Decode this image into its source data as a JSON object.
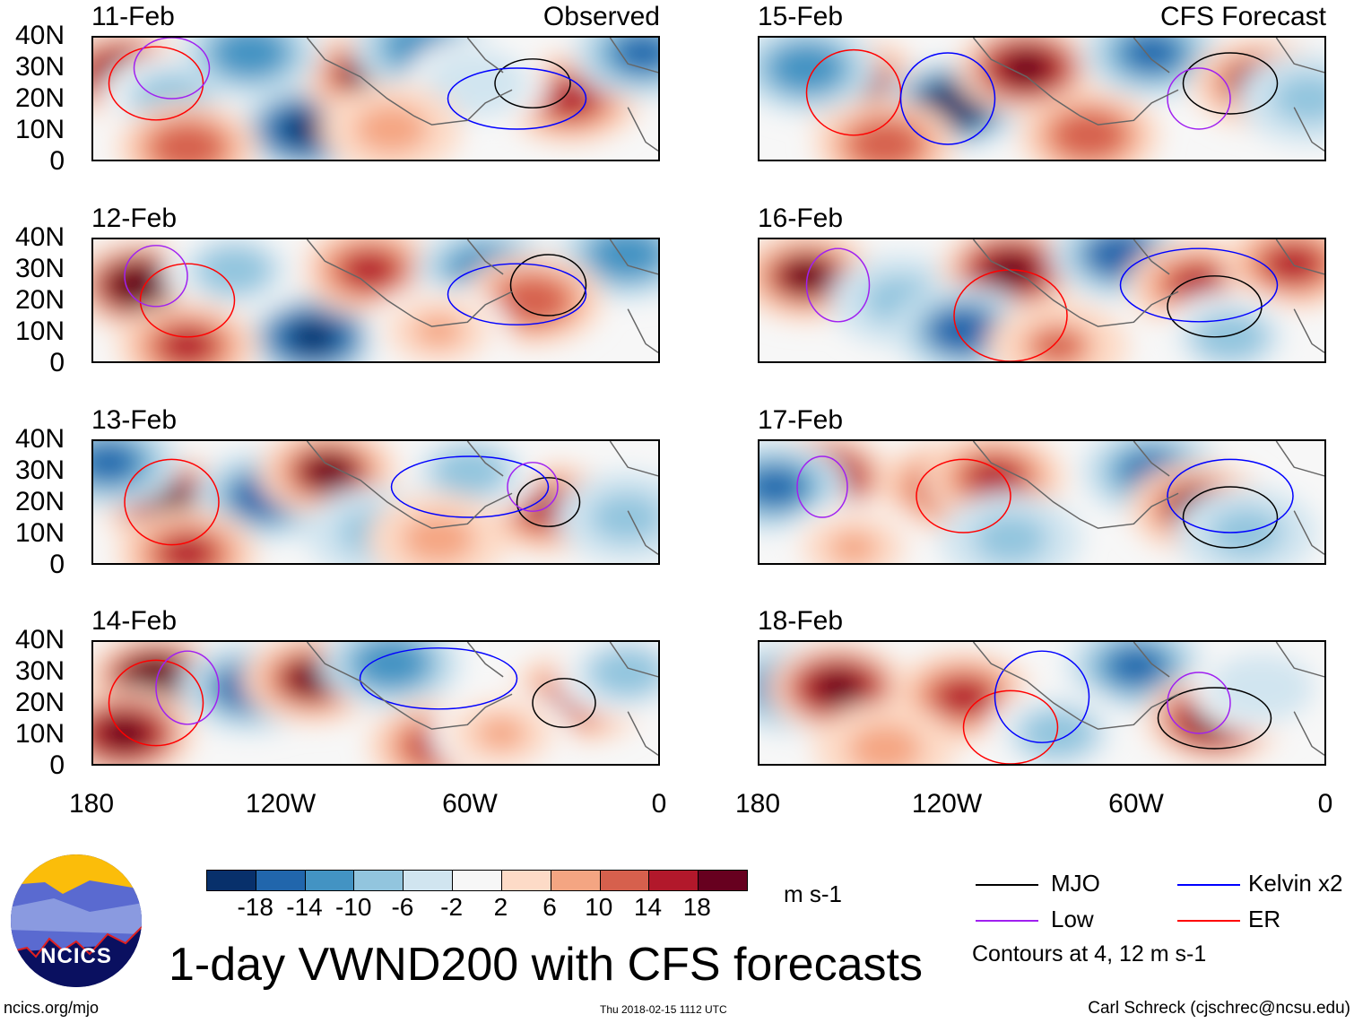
{
  "chart_data": {
    "type": "heatmap",
    "title": "1-day VWND200 with CFS forecasts",
    "units": "m s-1",
    "xlim": [
      -180,
      0
    ],
    "ylim": [
      0,
      40
    ],
    "x_ticks": [
      "180",
      "120W",
      "60W",
      "0"
    ],
    "y_ticks": [
      "40N",
      "30N",
      "20N",
      "10N",
      "0"
    ],
    "left_column_label": "Observed",
    "right_column_label": "CFS Forecast",
    "colorbar": {
      "levels": [
        "-18",
        "-14",
        "-10",
        "-6",
        "-2",
        "2",
        "6",
        "10",
        "14",
        "18"
      ],
      "colors": [
        "#08306b",
        "#2166ac",
        "#4393c3",
        "#92c5de",
        "#d1e5f0",
        "#f7f7f7",
        "#fddbc7",
        "#f4a582",
        "#d6604d",
        "#b2182b",
        "#67001f"
      ]
    },
    "legend": [
      {
        "label": "MJO",
        "color": "#000000"
      },
      {
        "label": "Kelvin x2",
        "color": "#0000ff"
      },
      {
        "label": "Low",
        "color": "#a020f0"
      },
      {
        "label": "ER",
        "color": "#ff0000"
      }
    ],
    "contour_note": "Contours at 4, 12 m s-1",
    "panels": [
      {
        "date": "11-Feb",
        "blobs": [
          [
            -170,
            28,
            20
          ],
          [
            -112,
            10,
            -20
          ],
          [
            -92,
            28,
            18
          ],
          [
            -75,
            37,
            -14
          ],
          [
            -28,
            20,
            16
          ],
          [
            -5,
            35,
            -15
          ],
          [
            -155,
            20,
            -8
          ],
          [
            -58,
            25,
            -6
          ],
          [
            -130,
            35,
            -12
          ],
          [
            -150,
            4,
            12
          ],
          [
            -85,
            10,
            8
          ]
        ],
        "contours": [
          [
            -40,
            25,
            12,
            8,
            "MJO"
          ],
          [
            -160,
            25,
            15,
            12,
            "ER"
          ],
          [
            -45,
            20,
            22,
            10,
            "Kelvin"
          ],
          [
            -155,
            30,
            12,
            10,
            "Low"
          ]
        ]
      },
      {
        "date": "12-Feb",
        "blobs": [
          [
            -165,
            25,
            22
          ],
          [
            -110,
            8,
            -20
          ],
          [
            -92,
            30,
            16
          ],
          [
            -55,
            30,
            -14
          ],
          [
            -10,
            35,
            -12
          ],
          [
            -40,
            20,
            12
          ],
          [
            -135,
            30,
            -8
          ],
          [
            -150,
            5,
            14
          ],
          [
            -70,
            10,
            6
          ]
        ],
        "contours": [
          [
            -35,
            25,
            12,
            10,
            "MJO"
          ],
          [
            -150,
            20,
            15,
            12,
            "ER"
          ],
          [
            -45,
            22,
            22,
            10,
            "Kelvin"
          ],
          [
            -160,
            28,
            10,
            10,
            "Low"
          ]
        ]
      },
      {
        "date": "13-Feb",
        "blobs": [
          [
            -155,
            20,
            20
          ],
          [
            -175,
            33,
            -16
          ],
          [
            -125,
            22,
            -18
          ],
          [
            -105,
            30,
            18
          ],
          [
            -35,
            18,
            16
          ],
          [
            -60,
            30,
            -8
          ],
          [
            -10,
            15,
            -10
          ],
          [
            -90,
            10,
            -10
          ],
          [
            -150,
            3,
            16
          ],
          [
            -70,
            8,
            8
          ]
        ],
        "contours": [
          [
            -35,
            20,
            10,
            8,
            "MJO"
          ],
          [
            -155,
            20,
            15,
            14,
            "ER"
          ],
          [
            -60,
            25,
            25,
            10,
            "Kelvin"
          ],
          [
            -40,
            25,
            8,
            8,
            "Low"
          ]
        ]
      },
      {
        "date": "14-Feb",
        "blobs": [
          [
            -160,
            28,
            22
          ],
          [
            -170,
            10,
            20
          ],
          [
            -130,
            25,
            -18
          ],
          [
            -110,
            28,
            18
          ],
          [
            -85,
            33,
            -12
          ],
          [
            -25,
            22,
            16
          ],
          [
            -70,
            6,
            14
          ],
          [
            -50,
            10,
            6
          ],
          [
            -10,
            30,
            -8
          ]
        ],
        "contours": [
          [
            -30,
            20,
            10,
            8,
            "MJO"
          ],
          [
            -160,
            20,
            15,
            14,
            "ER"
          ],
          [
            -70,
            28,
            25,
            10,
            "Kelvin"
          ],
          [
            -150,
            25,
            10,
            12,
            "Low"
          ]
        ]
      },
      {
        "date": "15-Feb",
        "blobs": [
          [
            -150,
            25,
            18
          ],
          [
            -165,
            30,
            -12
          ],
          [
            -118,
            18,
            -22
          ],
          [
            -95,
            30,
            20
          ],
          [
            -55,
            35,
            -16
          ],
          [
            -20,
            25,
            18
          ],
          [
            -75,
            8,
            12
          ],
          [
            -5,
            20,
            -10
          ],
          [
            -140,
            5,
            12
          ]
        ],
        "contours": [
          [
            -30,
            25,
            15,
            10,
            "MJO"
          ],
          [
            -150,
            22,
            15,
            14,
            "ER"
          ],
          [
            -120,
            20,
            15,
            15,
            "Kelvin"
          ],
          [
            -40,
            20,
            10,
            10,
            "Low"
          ]
        ]
      },
      {
        "date": "16-Feb",
        "blobs": [
          [
            -165,
            28,
            18
          ],
          [
            -135,
            20,
            -10
          ],
          [
            -100,
            30,
            20
          ],
          [
            -115,
            10,
            -18
          ],
          [
            -65,
            35,
            -18
          ],
          [
            -40,
            25,
            14
          ],
          [
            -10,
            32,
            16
          ],
          [
            -30,
            8,
            -8
          ],
          [
            -85,
            5,
            10
          ]
        ],
        "contours": [
          [
            -35,
            18,
            15,
            10,
            "MJO"
          ],
          [
            -100,
            15,
            18,
            15,
            "ER"
          ],
          [
            -40,
            25,
            25,
            12,
            "Kelvin"
          ],
          [
            -155,
            25,
            10,
            12,
            "Low"
          ]
        ]
      },
      {
        "date": "17-Feb",
        "blobs": [
          [
            -160,
            28,
            20
          ],
          [
            -175,
            25,
            -16
          ],
          [
            -120,
            25,
            16
          ],
          [
            -105,
            28,
            14
          ],
          [
            -55,
            30,
            -16
          ],
          [
            -40,
            18,
            18
          ],
          [
            -25,
            10,
            -10
          ],
          [
            -100,
            8,
            -10
          ],
          [
            -150,
            5,
            6
          ]
        ],
        "contours": [
          [
            -30,
            15,
            15,
            10,
            "MJO"
          ],
          [
            -115,
            22,
            15,
            12,
            "ER"
          ],
          [
            -30,
            22,
            20,
            12,
            "Kelvin"
          ],
          [
            -160,
            25,
            8,
            10,
            "Low"
          ]
        ]
      },
      {
        "date": "18-Feb",
        "blobs": [
          [
            -170,
            25,
            -18
          ],
          [
            -155,
            25,
            20
          ],
          [
            -115,
            22,
            16
          ],
          [
            -60,
            32,
            -16
          ],
          [
            -35,
            15,
            20
          ],
          [
            -85,
            10,
            -8
          ],
          [
            -20,
            25,
            -6
          ],
          [
            -140,
            5,
            8
          ]
        ],
        "contours": [
          [
            -35,
            15,
            18,
            10,
            "MJO"
          ],
          [
            -100,
            12,
            15,
            12,
            "ER"
          ],
          [
            -90,
            22,
            15,
            15,
            "Kelvin"
          ],
          [
            -40,
            20,
            10,
            10,
            "Low"
          ]
        ]
      }
    ]
  },
  "footer": {
    "logo_text": "NCICS",
    "url": "ncics.org/mjo",
    "timestamp": "Thu 2018-02-15 1112 UTC",
    "author": "Carl Schreck (cjschrec@ncsu.edu)"
  }
}
